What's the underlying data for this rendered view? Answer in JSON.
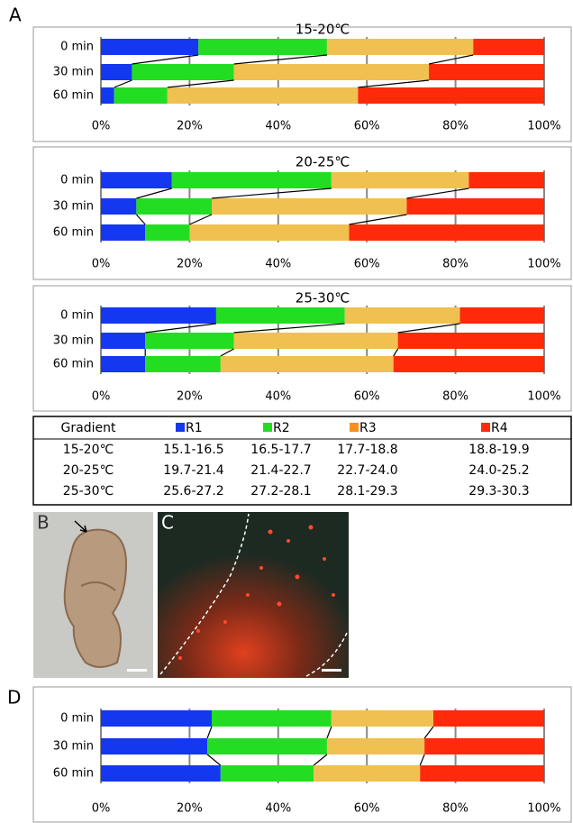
{
  "panel_labels": [
    "A",
    "B",
    "C",
    "D"
  ],
  "chart_data": [
    {
      "type": "stacked_bar",
      "title": "15-20℃",
      "categories": [
        "0 min",
        "30 min",
        "60 min"
      ],
      "series": [
        {
          "color": "#1437f0",
          "values": [
            22,
            7,
            3
          ]
        },
        {
          "color": "#22dd22",
          "values": [
            29,
            23,
            12
          ]
        },
        {
          "color": "#f0c050",
          "values": [
            33,
            44,
            43
          ]
        },
        {
          "color": "#ff2a0a",
          "values": [
            16,
            26,
            42
          ]
        }
      ],
      "xlim": [
        0,
        100
      ],
      "xticks": [
        {
          "value": 0,
          "label": "0%"
        },
        {
          "value": 20,
          "label": "20%"
        },
        {
          "value": 40,
          "label": "40%"
        },
        {
          "value": 60,
          "label": "60%"
        },
        {
          "value": 80,
          "label": "80%"
        },
        {
          "value": 100,
          "label": "100%"
        }
      ],
      "grid": true
    },
    {
      "type": "stacked_bar",
      "title": "20-25℃",
      "categories": [
        "0 min",
        "30 min",
        "60 min"
      ],
      "series": [
        {
          "color": "#1437f0",
          "values": [
            16,
            8,
            10
          ]
        },
        {
          "color": "#22dd22",
          "values": [
            36,
            17,
            10
          ]
        },
        {
          "color": "#f0c050",
          "values": [
            31,
            44,
            36
          ]
        },
        {
          "color": "#ff2a0a",
          "values": [
            17,
            31,
            44
          ]
        }
      ],
      "xlim": [
        0,
        100
      ],
      "xticks": [
        {
          "value": 0,
          "label": "0%"
        },
        {
          "value": 20,
          "label": "20%"
        },
        {
          "value": 40,
          "label": "40%"
        },
        {
          "value": 60,
          "label": "60%"
        },
        {
          "value": 80,
          "label": "80%"
        },
        {
          "value": 100,
          "label": "100%"
        }
      ],
      "grid": true
    },
    {
      "type": "stacked_bar",
      "title": "25-30℃",
      "categories": [
        "0 min",
        "30 min",
        "60 min"
      ],
      "series": [
        {
          "color": "#1437f0",
          "values": [
            26,
            10,
            10
          ]
        },
        {
          "color": "#22dd22",
          "values": [
            29,
            20,
            17
          ]
        },
        {
          "color": "#f0c050",
          "values": [
            26,
            37,
            39
          ]
        },
        {
          "color": "#ff2a0a",
          "values": [
            19,
            33,
            34
          ]
        }
      ],
      "xlim": [
        0,
        100
      ],
      "xticks": [
        {
          "value": 0,
          "label": "0%"
        },
        {
          "value": 20,
          "label": "20%"
        },
        {
          "value": 40,
          "label": "40%"
        },
        {
          "value": 60,
          "label": "60%"
        },
        {
          "value": 80,
          "label": "80%"
        },
        {
          "value": 100,
          "label": "100%"
        }
      ],
      "grid": true
    },
    {
      "type": "stacked_bar",
      "categories": [
        "0 min",
        "30 min",
        "60 min"
      ],
      "series": [
        {
          "color": "#1437f0",
          "values": [
            25,
            24,
            27
          ]
        },
        {
          "color": "#22dd22",
          "values": [
            27,
            27,
            21
          ]
        },
        {
          "color": "#f0c050",
          "values": [
            23,
            22,
            24
          ]
        },
        {
          "color": "#ff2a0a",
          "values": [
            25,
            27,
            28
          ]
        }
      ],
      "xlim": [
        0,
        100
      ],
      "xticks": [
        {
          "value": 0,
          "label": "0%"
        },
        {
          "value": 20,
          "label": "20%"
        },
        {
          "value": 40,
          "label": "40%"
        },
        {
          "value": 60,
          "label": "60%"
        },
        {
          "value": 80,
          "label": "80%"
        },
        {
          "value": 100,
          "label": "100%"
        }
      ],
      "grid": true
    }
  ],
  "table": {
    "header": [
      "Gradient",
      "R1",
      "R2",
      "R3",
      "R4"
    ],
    "header_colors": [
      null,
      "#1437f0",
      "#22dd22",
      "#f5901e",
      "#ff2a0a"
    ],
    "rows": [
      [
        "15-20℃",
        "15.1-16.5",
        "16.5-17.7",
        "17.7-18.8",
        "18.8-19.9"
      ],
      [
        "20-25℃",
        "19.7-21.4",
        "21.4-22.7",
        "22.7-24.0",
        "24.0-25.2"
      ],
      [
        "25-30℃",
        "25.6-27.2",
        "27.2-28.1",
        "28.1-29.3",
        "29.3-30.3"
      ]
    ]
  }
}
